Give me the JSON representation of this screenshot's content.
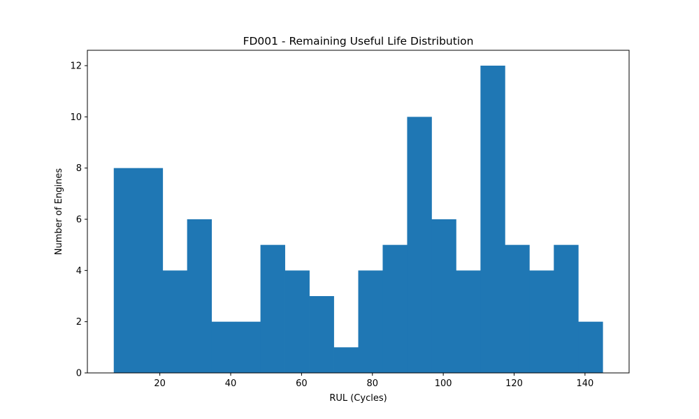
{
  "chart_data": {
    "type": "bar",
    "title": "FD001 - Remaining Useful Life Distribution",
    "xlabel": "RUL (Cycles)",
    "ylabel": "Number of Engines",
    "bin_start": 7,
    "bin_width": 6.9,
    "counts": [
      8,
      8,
      4,
      6,
      2,
      2,
      5,
      4,
      3,
      1,
      4,
      5,
      10,
      6,
      4,
      12,
      5,
      4,
      5,
      2
    ],
    "xlim": [
      -0.45,
      152.45
    ],
    "ylim": [
      0,
      12.6
    ],
    "xticks": [
      "20",
      "40",
      "60",
      "80",
      "100",
      "120",
      "140"
    ],
    "yticks": [
      "0",
      "2",
      "4",
      "6",
      "8",
      "10",
      "12"
    ],
    "bar_color": "#1f77b4",
    "grid": false,
    "legend": false
  }
}
